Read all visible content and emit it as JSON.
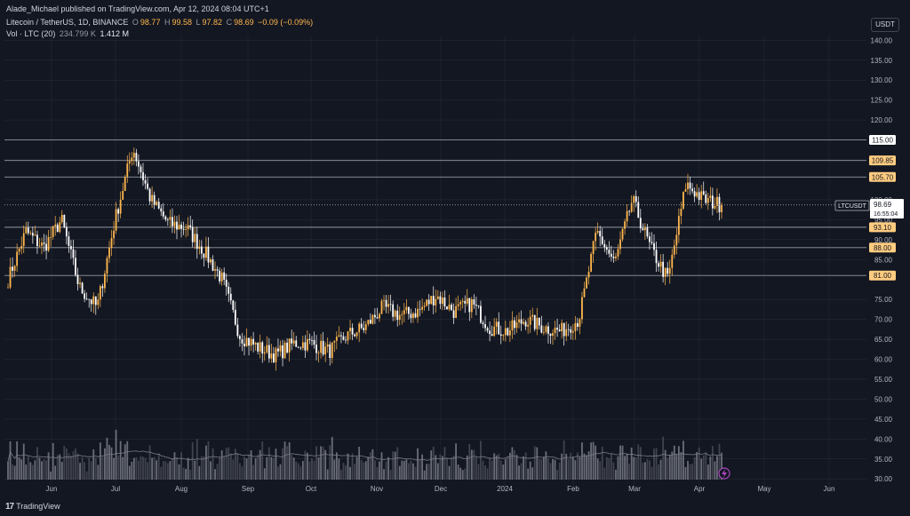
{
  "header": {
    "publisher_line": "Alade_Michael published on TradingView.com, Apr 12, 2024 08:04 UTC+1",
    "symbol": "Litecoin / TetherUS, 1D, BINANCE",
    "o_label": "O",
    "o_value": "98.77",
    "h_label": "H",
    "h_value": "99.58",
    "l_label": "L",
    "l_value": "97.82",
    "c_label": "C",
    "c_value": "98.69",
    "change": "−0.09 (−0.09%)",
    "vol_label": "Vol · LTC (20)",
    "vol_value": "234.799 K",
    "vol_ma": "1.412 M"
  },
  "currency_button": "USDT",
  "price_label": {
    "symbol": "LTCUSDT",
    "price": "98.69",
    "countdown": "16:55:04"
  },
  "footer": {
    "logo_mark": "17",
    "logo_text": "TradingView"
  },
  "colors": {
    "background": "#131722",
    "up": "#ffb74d",
    "down": "#ffffff",
    "level_line": "#9598a1",
    "level_badge": "#ffcc80",
    "grid": "#2a2e39"
  },
  "chart_data": {
    "type": "candlestick",
    "symbol": "LTCUSDT",
    "timeframe": "1D",
    "ylim": [
      30,
      142
    ],
    "y_ticks": [
      140,
      135,
      130,
      125,
      120,
      110,
      100,
      95,
      90,
      85,
      75,
      70,
      65,
      60,
      55,
      50,
      45,
      40,
      35,
      30
    ],
    "x_ticks": [
      "Jun",
      "Jul",
      "Aug",
      "Sep",
      "Oct",
      "Nov",
      "Dec",
      "2024",
      "Feb",
      "Mar",
      "Apr",
      "May",
      "Jun"
    ],
    "horizontal_levels": [
      115.0,
      109.85,
      105.7,
      93.1,
      88.0,
      81.0
    ],
    "level_labels": [
      "115.00",
      "109.85",
      "105.70",
      "93.10",
      "88.00",
      "81.00"
    ],
    "last_price": 98.69,
    "price_series_approx": [
      [
        "Jun",
        80
      ],
      [
        "Jun",
        92
      ],
      [
        "Jun",
        88
      ],
      [
        "Jun",
        95
      ],
      [
        "Jun",
        78
      ],
      [
        "Jun",
        73
      ],
      [
        "Jul",
        95
      ],
      [
        "Jul",
        113
      ],
      [
        "Jul",
        100
      ],
      [
        "Jul",
        94
      ],
      [
        "Jul",
        93
      ],
      [
        "Aug",
        87
      ],
      [
        "Aug",
        80
      ],
      [
        "Aug",
        66
      ],
      [
        "Sep",
        63
      ],
      [
        "Sep",
        61
      ],
      [
        "Sep",
        64
      ],
      [
        "Oct",
        64
      ],
      [
        "Oct",
        62
      ],
      [
        "Oct",
        66
      ],
      [
        "Nov",
        68
      ],
      [
        "Nov",
        73
      ],
      [
        "Nov",
        71
      ],
      [
        "Dec",
        72
      ],
      [
        "Dec",
        76
      ],
      [
        "Dec",
        72
      ],
      [
        "Dec",
        74
      ],
      [
        "2024",
        68
      ],
      [
        "2024",
        67
      ],
      [
        "2024",
        70
      ],
      [
        "Feb",
        68
      ],
      [
        "Feb",
        67
      ],
      [
        "Feb",
        70
      ],
      [
        "Mar",
        92
      ],
      [
        "Mar",
        84
      ],
      [
        "Mar",
        100
      ],
      [
        "Mar",
        88
      ],
      [
        "Mar",
        80
      ],
      [
        "Apr",
        104
      ],
      [
        "Apr",
        100
      ],
      [
        "Apr",
        98.69
      ]
    ]
  }
}
